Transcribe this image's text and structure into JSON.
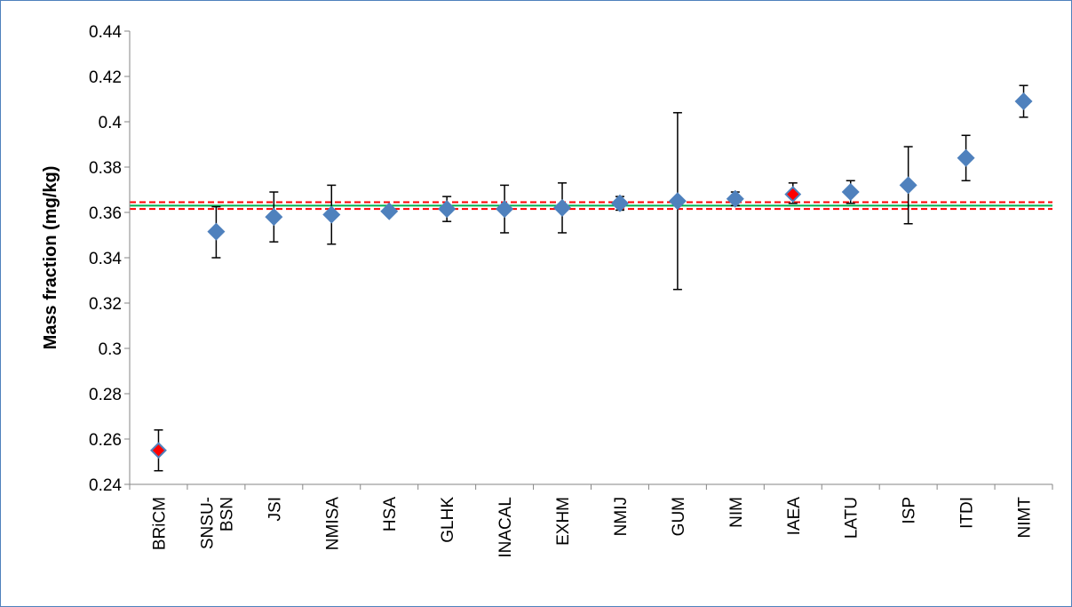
{
  "chart_data": {
    "type": "scatter",
    "title": "",
    "xlabel": "",
    "ylabel": "Mass fraction (mg/kg)",
    "ylim": [
      0.24,
      0.44
    ],
    "yticks": [
      0.24,
      0.26,
      0.28,
      0.3,
      0.32,
      0.34,
      0.36,
      0.38,
      0.4,
      0.42,
      0.44
    ],
    "ytick_labels": [
      "0.24",
      "0.26",
      "0.28",
      "0.3",
      "0.32",
      "0.34",
      "0.36",
      "0.38",
      "0.4",
      "0.42",
      "0.44"
    ],
    "grid": false,
    "legend": "none",
    "categories": [
      [
        "BRiCM"
      ],
      [
        "SNSU-",
        "BSN"
      ],
      [
        "JSI"
      ],
      [
        "NMISA"
      ],
      [
        "HSA"
      ],
      [
        "GLHK"
      ],
      [
        "INACAL"
      ],
      [
        "EXHM"
      ],
      [
        "NMIJ"
      ],
      [
        "GUM"
      ],
      [
        "NIM"
      ],
      [
        "IAEA"
      ],
      [
        "LATU"
      ],
      [
        "ISP"
      ],
      [
        "ITDI"
      ],
      [
        "NIMT"
      ]
    ],
    "values": [
      0.255,
      0.3515,
      0.358,
      0.359,
      0.3605,
      0.3615,
      0.3615,
      0.362,
      0.364,
      0.365,
      0.366,
      0.368,
      0.369,
      0.372,
      0.384,
      0.409
    ],
    "error_low": [
      0.246,
      0.34,
      0.347,
      0.346,
      0.3605,
      0.356,
      0.351,
      0.351,
      0.361,
      0.326,
      0.363,
      0.364,
      0.364,
      0.355,
      0.374,
      0.402
    ],
    "error_high": [
      0.264,
      0.3625,
      0.369,
      0.372,
      0.3605,
      0.367,
      0.372,
      0.373,
      0.367,
      0.404,
      0.369,
      0.373,
      0.374,
      0.389,
      0.394,
      0.416
    ],
    "highlighted": [
      "BRiCM",
      "IAEA"
    ],
    "reference_value": 0.363,
    "reference_band": [
      0.3615,
      0.3645
    ],
    "colors": {
      "marker": "#4f81bd",
      "highlight": "#ff0000",
      "reference_line": "#00b050",
      "band_lines": "#ff0000",
      "error_bars": "#000000",
      "axis": "#868686",
      "frame": "#4f81bd"
    }
  }
}
